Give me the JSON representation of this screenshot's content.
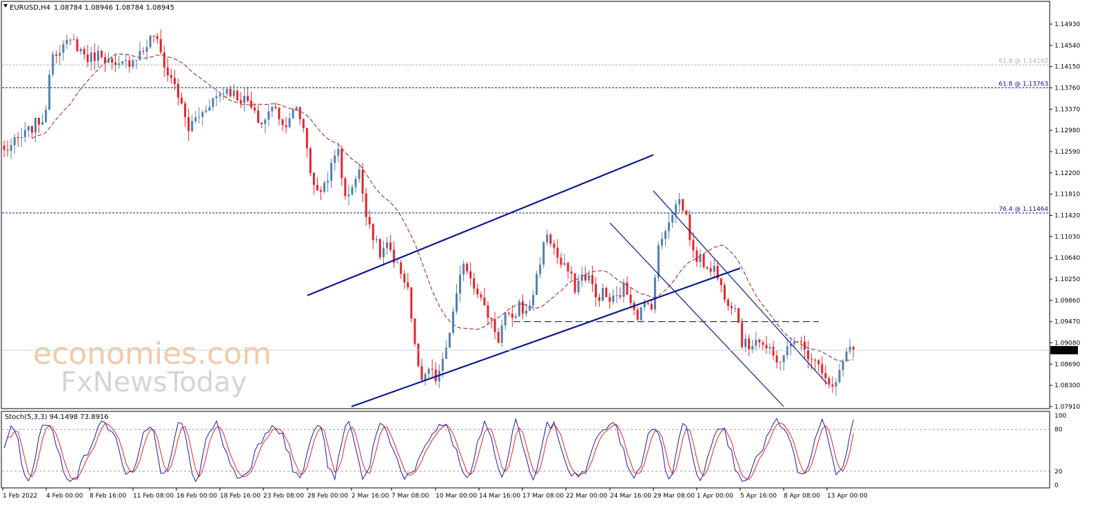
{
  "header": {
    "symbol": "EURUSD,H4",
    "ohlc": "1.08784 1.08946 1.08784 1.08945"
  },
  "stoch_label": "Stoch(5,3,3) 94.1498 73.8916",
  "watermark": {
    "line1": "economies.com",
    "line2": "FxNewsToday"
  },
  "colors": {
    "bull": "#4f7fb0",
    "bear": "#e8222a",
    "ma": "#a01515",
    "channel": "#0a168f",
    "fib_dark": "#0a168f",
    "fib_light": "#b0b0b0",
    "stoch_main": "#1a1aa6",
    "stoch_signal": "#e8222a"
  },
  "chart_data": {
    "type": "candlestick",
    "title": "EURUSD,H4",
    "price_axis_ticks": [
      "1.14930",
      "1.14540",
      "1.14150",
      "1.13760",
      "1.13370",
      "1.12980",
      "1.12590",
      "1.12200",
      "1.11810",
      "1.11420",
      "1.11030",
      "1.10640",
      "1.10250",
      "1.09860",
      "1.09470",
      "1.09080",
      "1.08690",
      "1.08300",
      "1.07910"
    ],
    "ylim": [
      1.0791,
      1.1493
    ],
    "current_price": "1.08945",
    "time_axis_ticks": [
      "1 Feb 2022",
      "4 Feb 00:00",
      "8 Feb 16:00",
      "11 Feb 08:00",
      "16 Feb 00:00",
      "18 Feb 16:00",
      "23 Feb 08:00",
      "28 Feb 00:00",
      "2 Mar 16:00",
      "7 Mar 08:00",
      "10 Mar 00:00",
      "14 Mar 16:00",
      "17 Mar 08:00",
      "22 Mar 00:00",
      "24 Mar 16:00",
      "29 Mar 08:00",
      "1 Apr 00:00",
      "5 Apr 16:00",
      "8 Apr 08:00",
      "13 Apr 00:00"
    ],
    "fib_levels": [
      {
        "label": "61.8 @ 1.14182",
        "price": 1.14182,
        "style": "light"
      },
      {
        "label": "61.8 @ 1.13763",
        "price": 1.13763,
        "style": "dark"
      },
      {
        "label": "76.4 @ 1.11464",
        "price": 1.11464,
        "style": "dark"
      }
    ],
    "support_level": 1.0947,
    "close_anchors": [
      [
        0,
        1.126
      ],
      [
        6,
        1.129
      ],
      [
        9,
        1.131
      ],
      [
        12,
        1.1325
      ],
      [
        13,
        1.141
      ],
      [
        14,
        1.144
      ],
      [
        16,
        1.145
      ],
      [
        20,
        1.146
      ],
      [
        24,
        1.143
      ],
      [
        28,
        1.144
      ],
      [
        32,
        1.141
      ],
      [
        36,
        1.1425
      ],
      [
        40,
        1.1445
      ],
      [
        43,
        1.1475
      ],
      [
        45,
        1.144
      ],
      [
        47,
        1.14
      ],
      [
        49,
        1.1385
      ],
      [
        51,
        1.134
      ],
      [
        53,
        1.13
      ],
      [
        55,
        1.132
      ],
      [
        57,
        1.133
      ],
      [
        59,
        1.135
      ],
      [
        61,
        1.136
      ],
      [
        64,
        1.1375
      ],
      [
        67,
        1.136
      ],
      [
        70,
        1.135
      ],
      [
        72,
        1.1325
      ],
      [
        74,
        1.131
      ],
      [
        76,
        1.133
      ],
      [
        78,
        1.1345
      ],
      [
        80,
        1.1305
      ],
      [
        82,
        1.1325
      ],
      [
        84,
        1.1335
      ],
      [
        86,
        1.1305
      ],
      [
        88,
        1.1225
      ],
      [
        90,
        1.118
      ],
      [
        92,
        1.12
      ],
      [
        94,
        1.123
      ],
      [
        96,
        1.1265
      ],
      [
        98,
        1.117
      ],
      [
        100,
        1.12
      ],
      [
        102,
        1.122
      ],
      [
        104,
        1.115
      ],
      [
        106,
        1.1105
      ],
      [
        108,
        1.107
      ],
      [
        110,
        1.109
      ],
      [
        112,
        1.105
      ],
      [
        114,
        1.104
      ],
      [
        116,
        1.101
      ],
      [
        118,
        1.09
      ],
      [
        120,
        1.083
      ],
      [
        122,
        1.086
      ],
      [
        124,
        1.084
      ],
      [
        126,
        1.087
      ],
      [
        128,
        1.093
      ],
      [
        130,
        1.099
      ],
      [
        132,
        1.106
      ],
      [
        134,
        1.103
      ],
      [
        136,
        1.1005
      ],
      [
        138,
        1.097
      ],
      [
        140,
        1.095
      ],
      [
        142,
        1.0915
      ],
      [
        144,
        1.096
      ],
      [
        146,
        1.0945
      ],
      [
        148,
        1.098
      ],
      [
        150,
        1.096
      ],
      [
        152,
        1.1
      ],
      [
        154,
        1.106
      ],
      [
        156,
        1.111
      ],
      [
        158,
        1.108
      ],
      [
        160,
        1.105
      ],
      [
        162,
        1.104
      ],
      [
        164,
        1.101
      ],
      [
        166,
        1.103
      ],
      [
        168,
        1.103
      ],
      [
        170,
        1.099
      ],
      [
        172,
        1.1
      ],
      [
        174,
        1.0985
      ],
      [
        176,
        1.099
      ],
      [
        178,
        1.101
      ],
      [
        180,
        1.099
      ],
      [
        182,
        1.096
      ],
      [
        184,
        1.0975
      ],
      [
        186,
        1.098
      ],
      [
        188,
        1.108
      ],
      [
        190,
        1.112
      ],
      [
        192,
        1.115
      ],
      [
        194,
        1.117
      ],
      [
        196,
        1.114
      ],
      [
        198,
        1.107
      ],
      [
        200,
        1.106
      ],
      [
        202,
        1.105
      ],
      [
        204,
        1.1045
      ],
      [
        206,
        1.101
      ],
      [
        208,
        1.0985
      ],
      [
        210,
        1.098
      ],
      [
        212,
        1.091
      ],
      [
        214,
        1.09
      ],
      [
        216,
        1.092
      ],
      [
        218,
        1.0905
      ],
      [
        220,
        1.089
      ],
      [
        222,
        1.087
      ],
      [
        224,
        1.089
      ],
      [
        226,
        1.09
      ],
      [
        228,
        1.092
      ],
      [
        230,
        1.089
      ],
      [
        232,
        1.0885
      ],
      [
        234,
        1.0875
      ],
      [
        236,
        1.084
      ],
      [
        238,
        1.082
      ],
      [
        240,
        1.085
      ],
      [
        242,
        1.09
      ],
      [
        244,
        1.0895
      ]
    ],
    "stochastic": {
      "label": "Stoch(5,3,3)",
      "main": 94.1498,
      "signal": 73.8916,
      "ylim": [
        0,
        100
      ],
      "levels": [
        20,
        80
      ],
      "axis_ticks": [
        "100",
        "80",
        "20",
        "0"
      ]
    },
    "channels": [
      {
        "name": "rising-channel-upper",
        "from": [
          "28 Feb 00:00",
          1.0995
        ],
        "to": [
          "29 Mar 08:00",
          1.1253
        ]
      },
      {
        "name": "rising-channel-lower",
        "from": [
          "2 Mar 16:00",
          1.0791
        ],
        "to": [
          "5 Apr 16:00",
          1.1045
        ]
      },
      {
        "name": "falling-channel-upper",
        "from": [
          "29 Mar 08:00",
          1.1187
        ],
        "to": [
          "13 Apr 00:00",
          1.0833
        ]
      },
      {
        "name": "falling-channel-lower",
        "from": [
          "24 Mar 16:00",
          1.1128
        ],
        "to": [
          "8 Apr 08:00",
          1.0791
        ]
      }
    ]
  }
}
